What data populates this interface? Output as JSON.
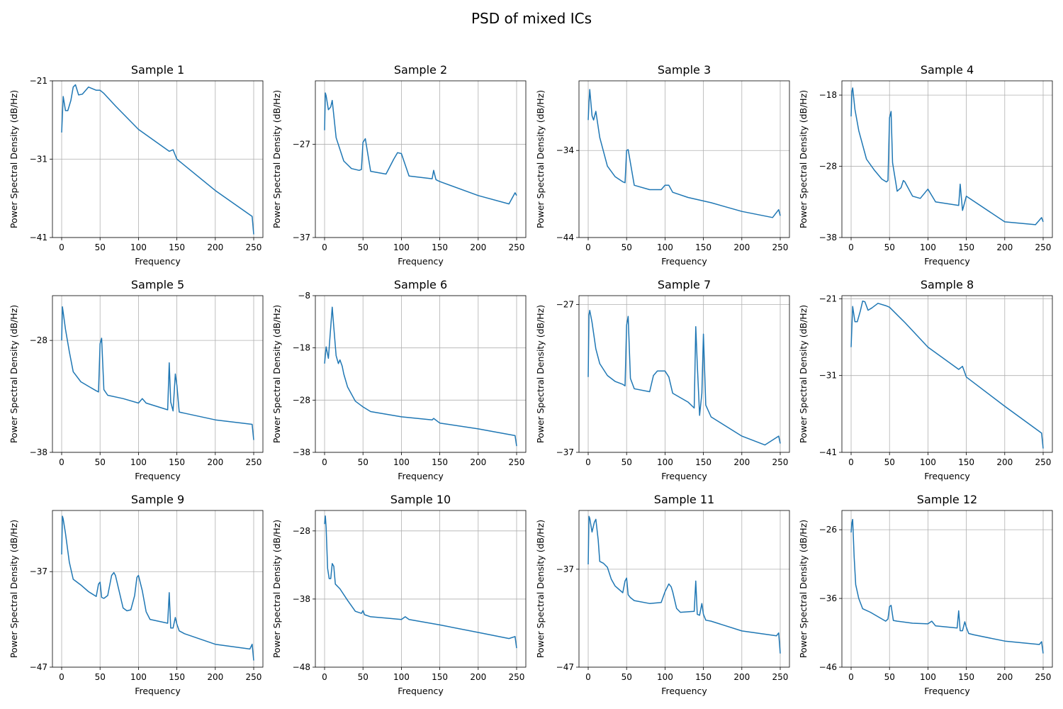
{
  "figure": {
    "suptitle": "PSD of mixed ICs"
  },
  "style": {
    "line_color": "#1f77b4",
    "grid_color": "#b0b0b0"
  },
  "chart_data": [
    {
      "type": "line",
      "title": "Sample 1",
      "xlabel": "Frequency",
      "ylabel": "Power Spectral Density (dB/Hz)",
      "xlim": [
        -12,
        262
      ],
      "ylim": [
        -41,
        -21
      ],
      "xticks": [
        0,
        50,
        100,
        150,
        200,
        250
      ],
      "yticks": [
        -41,
        -31,
        -21
      ],
      "grid": true,
      "x": [
        0,
        2,
        5,
        8,
        12,
        15,
        18,
        22,
        27,
        35,
        45,
        50,
        55,
        70,
        100,
        140,
        145,
        150,
        200,
        248,
        250
      ],
      "y": [
        -27.6,
        -23,
        -24.8,
        -24.8,
        -23.5,
        -21.8,
        -21.5,
        -22.8,
        -22.7,
        -21.8,
        -22.2,
        -22.2,
        -22.6,
        -24.2,
        -27.2,
        -30,
        -29.8,
        -31,
        -35,
        -38.3,
        -40.6
      ]
    },
    {
      "type": "line",
      "title": "Sample 2",
      "xlabel": "Frequency",
      "ylabel": "Power Spectral Density (dB/Hz)",
      "xlim": [
        -12,
        262
      ],
      "ylim": [
        -37,
        -20.2
      ],
      "xticks": [
        0,
        50,
        100,
        150,
        200,
        250
      ],
      "yticks": [
        -37,
        -27
      ],
      "grid": true,
      "x": [
        0,
        1,
        2,
        5,
        8,
        10,
        15,
        25,
        35,
        45,
        48,
        50,
        53,
        60,
        80,
        90,
        95,
        100,
        110,
        140,
        142,
        145,
        150,
        200,
        240,
        248,
        250
      ],
      "y": [
        -25.5,
        -21.5,
        -21.8,
        -23.3,
        -23,
        -22.3,
        -26.3,
        -28.8,
        -29.6,
        -29.8,
        -29.7,
        -26.8,
        -26.4,
        -29.9,
        -30.2,
        -28.6,
        -27.9,
        -28,
        -30.4,
        -30.7,
        -29.8,
        -30.8,
        -31,
        -32.5,
        -33.4,
        -32.2,
        -32.5
      ]
    },
    {
      "type": "line",
      "title": "Sample 3",
      "xlabel": "Frequency",
      "ylabel": "Power Spectral Density (dB/Hz)",
      "xlim": [
        -12,
        262
      ],
      "ylim": [
        -44,
        -26
      ],
      "xticks": [
        0,
        50,
        100,
        150,
        200,
        250
      ],
      "yticks": [
        -44,
        -34
      ],
      "grid": true,
      "x": [
        0,
        1,
        2,
        5,
        7,
        10,
        15,
        25,
        35,
        45,
        48,
        50,
        52,
        60,
        80,
        95,
        100,
        105,
        110,
        130,
        160,
        200,
        240,
        248,
        250
      ],
      "y": [
        -30.5,
        -28.5,
        -27,
        -30,
        -30.5,
        -29.5,
        -32.5,
        -35.8,
        -37,
        -37.6,
        -37.7,
        -34,
        -33.9,
        -38,
        -38.5,
        -38.5,
        -38,
        -38,
        -38.8,
        -39.4,
        -40,
        -41,
        -41.7,
        -40.8,
        -41.5
      ]
    },
    {
      "type": "line",
      "title": "Sample 4",
      "xlabel": "Frequency",
      "ylabel": "Power Spectral Density (dB/Hz)",
      "xlim": [
        -12,
        262
      ],
      "ylim": [
        -38,
        -16
      ],
      "xticks": [
        0,
        50,
        100,
        150,
        200,
        250
      ],
      "yticks": [
        -38,
        -28,
        -18
      ],
      "grid": true,
      "x": [
        0,
        1,
        2,
        5,
        10,
        20,
        30,
        40,
        46,
        48,
        50,
        52,
        54,
        60,
        65,
        68,
        70,
        80,
        90,
        100,
        110,
        140,
        142,
        145,
        150,
        200,
        240,
        248,
        250
      ],
      "y": [
        -21,
        -17.5,
        -17,
        -20,
        -23,
        -27,
        -28.5,
        -29.8,
        -30.2,
        -30,
        -21.2,
        -20.3,
        -27.5,
        -31.5,
        -31,
        -30,
        -30.2,
        -32.2,
        -32.5,
        -31.2,
        -33,
        -33.5,
        -30.5,
        -34.2,
        -32.2,
        -35.8,
        -36.2,
        -35.2,
        -35.8
      ]
    },
    {
      "type": "line",
      "title": "Sample 5",
      "xlabel": "Frequency",
      "ylabel": "Power Spectral Density (dB/Hz)",
      "xlim": [
        -12,
        262
      ],
      "ylim": [
        -38,
        -24
      ],
      "xticks": [
        0,
        50,
        100,
        150,
        200,
        250
      ],
      "yticks": [
        -38,
        -28
      ],
      "grid": true,
      "x": [
        0,
        1,
        2,
        5,
        10,
        15,
        25,
        35,
        45,
        48,
        50,
        52,
        55,
        60,
        80,
        100,
        105,
        110,
        138,
        140,
        142,
        145,
        148,
        150,
        153,
        160,
        200,
        248,
        250
      ],
      "y": [
        -28,
        -25,
        -25.5,
        -27,
        -29,
        -30.8,
        -31.7,
        -32.1,
        -32.5,
        -32.6,
        -28.3,
        -27.8,
        -32.4,
        -32.9,
        -33.2,
        -33.6,
        -33.2,
        -33.6,
        -34.2,
        -30,
        -33.5,
        -34.3,
        -31,
        -32,
        -34.4,
        -34.5,
        -35.1,
        -35.5,
        -36.9
      ]
    },
    {
      "type": "line",
      "title": "Sample 6",
      "xlabel": "Frequency",
      "ylabel": "Power Spectral Density (dB/Hz)",
      "xlim": [
        -12,
        262
      ],
      "ylim": [
        -38,
        -8
      ],
      "xticks": [
        0,
        50,
        100,
        150,
        200,
        250
      ],
      "yticks": [
        -38,
        -28,
        -18,
        -8
      ],
      "grid": true,
      "x": [
        0,
        2,
        5,
        8,
        10,
        12,
        15,
        18,
        20,
        23,
        25,
        30,
        40,
        50,
        60,
        100,
        140,
        142,
        150,
        200,
        248,
        250
      ],
      "y": [
        -21,
        -17.8,
        -20,
        -14,
        -10.2,
        -14,
        -19.5,
        -21,
        -20.3,
        -21.5,
        -23,
        -25.5,
        -28.2,
        -29.3,
        -30.2,
        -31.2,
        -31.8,
        -31.5,
        -32.4,
        -33.5,
        -34.8,
        -36.8
      ]
    },
    {
      "type": "line",
      "title": "Sample 7",
      "xlabel": "Frequency",
      "ylabel": "Power Spectral Density (dB/Hz)",
      "xlim": [
        -12,
        262
      ],
      "ylim": [
        -37,
        -26.4
      ],
      "xticks": [
        0,
        50,
        100,
        150,
        200,
        250
      ],
      "yticks": [
        -37,
        -27
      ],
      "grid": true,
      "x": [
        0,
        1,
        2,
        5,
        10,
        15,
        25,
        35,
        45,
        48,
        50,
        52,
        55,
        60,
        80,
        85,
        90,
        100,
        105,
        110,
        130,
        138,
        140,
        142,
        145,
        148,
        150,
        153,
        160,
        200,
        230,
        248,
        250
      ],
      "y": [
        -31.9,
        -27.7,
        -27.4,
        -28.2,
        -30,
        -31,
        -31.8,
        -32.2,
        -32.4,
        -32.5,
        -28.4,
        -27.8,
        -32,
        -32.7,
        -32.9,
        -31.8,
        -31.5,
        -31.5,
        -31.9,
        -33,
        -33.6,
        -34,
        -28.5,
        -31,
        -34.5,
        -33,
        -29,
        -33.8,
        -34.6,
        -35.9,
        -36.5,
        -35.9,
        -36.4
      ]
    },
    {
      "type": "line",
      "title": "Sample 8",
      "xlabel": "Frequency",
      "ylabel": "Power Spectral Density (dB/Hz)",
      "xlim": [
        -12,
        262
      ],
      "ylim": [
        -41,
        -20.6
      ],
      "xticks": [
        0,
        50,
        100,
        150,
        200,
        250
      ],
      "yticks": [
        -41,
        -31,
        -21
      ],
      "grid": true,
      "x": [
        0,
        2,
        5,
        8,
        12,
        15,
        18,
        22,
        27,
        35,
        45,
        50,
        55,
        70,
        100,
        140,
        145,
        150,
        200,
        248,
        250
      ],
      "y": [
        -27.3,
        -22,
        -24,
        -24,
        -22.6,
        -21.3,
        -21.4,
        -22.5,
        -22.2,
        -21.6,
        -21.9,
        -22.1,
        -22.6,
        -24.1,
        -27.3,
        -30.2,
        -29.8,
        -31.2,
        -35,
        -38.5,
        -40.5
      ]
    },
    {
      "type": "line",
      "title": "Sample 9",
      "xlabel": "Frequency",
      "ylabel": "Power Spectral Density (dB/Hz)",
      "xlim": [
        -12,
        262
      ],
      "ylim": [
        -47,
        -30.6
      ],
      "xticks": [
        0,
        50,
        100,
        150,
        200,
        250
      ],
      "yticks": [
        -47,
        -37
      ],
      "grid": true,
      "x": [
        0,
        1,
        2,
        5,
        10,
        15,
        25,
        35,
        45,
        48,
        50,
        52,
        55,
        60,
        65,
        68,
        70,
        80,
        85,
        90,
        95,
        98,
        100,
        105,
        110,
        115,
        138,
        140,
        142,
        145,
        148,
        150,
        153,
        160,
        200,
        245,
        248,
        250
      ],
      "y": [
        -35.2,
        -31.2,
        -31.5,
        -33,
        -36,
        -37.8,
        -38.4,
        -39.1,
        -39.6,
        -38.3,
        -38.1,
        -39.7,
        -39.8,
        -39.5,
        -37.4,
        -37.1,
        -37.4,
        -40.8,
        -41.1,
        -41,
        -39.5,
        -37.6,
        -37.4,
        -39,
        -41.2,
        -42,
        -42.4,
        -39.2,
        -42.9,
        -42.9,
        -41.8,
        -42.5,
        -43.2,
        -43.5,
        -44.6,
        -45.1,
        -44.6,
        -46.3
      ]
    },
    {
      "type": "line",
      "title": "Sample 10",
      "xlabel": "Frequency",
      "ylabel": "Power Spectral Density (dB/Hz)",
      "xlim": [
        -12,
        262
      ],
      "ylim": [
        -48,
        -25
      ],
      "xticks": [
        0,
        50,
        100,
        150,
        200,
        250
      ],
      "yticks": [
        -48,
        -38,
        -28
      ],
      "grid": true,
      "x": [
        0,
        1,
        2,
        4,
        6,
        8,
        10,
        12,
        14,
        20,
        30,
        40,
        48,
        50,
        52,
        60,
        80,
        100,
        105,
        110,
        150,
        200,
        240,
        248,
        250
      ],
      "y": [
        -27,
        -25.8,
        -27.5,
        -33.5,
        -35,
        -35,
        -32.8,
        -33.2,
        -35.8,
        -36.5,
        -38.2,
        -39.8,
        -40.1,
        -39.7,
        -40.3,
        -40.6,
        -40.8,
        -41,
        -40.6,
        -41,
        -41.8,
        -42.9,
        -43.8,
        -43.5,
        -45.2
      ]
    },
    {
      "type": "line",
      "title": "Sample 11",
      "xlabel": "Frequency",
      "ylabel": "Power Spectral Density (dB/Hz)",
      "xlim": [
        -12,
        262
      ],
      "ylim": [
        -47,
        -31
      ],
      "xticks": [
        0,
        50,
        100,
        150,
        200,
        250
      ],
      "yticks": [
        -47,
        -37
      ],
      "grid": true,
      "x": [
        0,
        1,
        2,
        5,
        8,
        10,
        13,
        15,
        20,
        25,
        30,
        35,
        45,
        48,
        50,
        52,
        55,
        60,
        80,
        95,
        100,
        105,
        108,
        110,
        115,
        120,
        138,
        140,
        142,
        145,
        148,
        150,
        153,
        160,
        200,
        245,
        248,
        250
      ],
      "y": [
        -36.5,
        -31.6,
        -31.8,
        -33.2,
        -32.2,
        -31.9,
        -34,
        -36.2,
        -36.4,
        -36.8,
        -38,
        -38.7,
        -39.4,
        -38.2,
        -37.9,
        -39.6,
        -39.9,
        -40.2,
        -40.5,
        -40.4,
        -39.3,
        -38.5,
        -38.8,
        -39.3,
        -41,
        -41.4,
        -41.3,
        -38.2,
        -41.6,
        -41.7,
        -40.5,
        -41.6,
        -42.2,
        -42.3,
        -43.3,
        -43.8,
        -43.5,
        -45.6
      ]
    },
    {
      "type": "line",
      "title": "Sample 12",
      "xlabel": "Frequency",
      "ylabel": "Power Spectral Density (dB/Hz)",
      "xlim": [
        -12,
        262
      ],
      "ylim": [
        -46,
        -23.2
      ],
      "xticks": [
        0,
        50,
        100,
        150,
        200,
        250
      ],
      "yticks": [
        -46,
        -36,
        -26
      ],
      "grid": true,
      "x": [
        0,
        1,
        2,
        4,
        6,
        10,
        15,
        25,
        45,
        48,
        50,
        52,
        55,
        60,
        80,
        100,
        105,
        110,
        138,
        140,
        142,
        145,
        148,
        150,
        153,
        160,
        200,
        245,
        248,
        250
      ],
      "y": [
        -26.4,
        -25,
        -24.5,
        -30,
        -34,
        -36,
        -37.5,
        -38,
        -39.3,
        -39,
        -37.2,
        -37,
        -39.2,
        -39.3,
        -39.6,
        -39.7,
        -39.3,
        -40,
        -40.3,
        -37.8,
        -40.7,
        -40.7,
        -39.4,
        -40.2,
        -41.1,
        -41.3,
        -42.2,
        -42.7,
        -42.3,
        -44
      ]
    }
  ]
}
